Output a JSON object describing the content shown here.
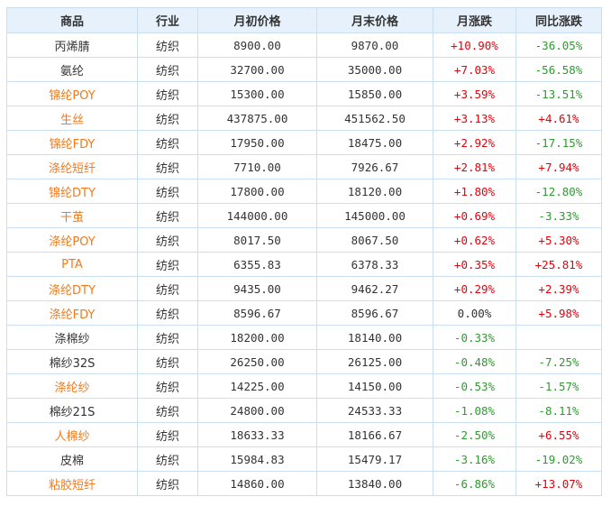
{
  "colors": {
    "header_bg": "#e6f1fb",
    "border": "#c9dff1",
    "link": "#f07a1e",
    "up": "#e8000b",
    "down": "#2e9c2e"
  },
  "headers": [
    "商品",
    "行业",
    "月初价格",
    "月末价格",
    "月涨跌",
    "同比涨跌"
  ],
  "rows": [
    {
      "name": "丙烯腈",
      "linked": false,
      "industry": "纺织",
      "start": "8900.00",
      "end": "9870.00",
      "month": "+10.90%",
      "month_dir": "up",
      "yoy": "-36.05%",
      "yoy_dir": "down"
    },
    {
      "name": "氨纶",
      "linked": false,
      "industry": "纺织",
      "start": "32700.00",
      "end": "35000.00",
      "month": "+7.03%",
      "month_dir": "up",
      "yoy": "-56.58%",
      "yoy_dir": "down"
    },
    {
      "name": "锦纶POY",
      "linked": true,
      "industry": "纺织",
      "start": "15300.00",
      "end": "15850.00",
      "month": "+3.59%",
      "month_dir": "up",
      "yoy": "-13.51%",
      "yoy_dir": "down"
    },
    {
      "name": "生丝",
      "linked": true,
      "industry": "纺织",
      "start": "437875.00",
      "end": "451562.50",
      "month": "+3.13%",
      "month_dir": "up",
      "yoy": "+4.61%",
      "yoy_dir": "up"
    },
    {
      "name": "锦纶FDY",
      "linked": true,
      "industry": "纺织",
      "start": "17950.00",
      "end": "18475.00",
      "month": "+2.92%",
      "month_dir": "up",
      "yoy": "-17.15%",
      "yoy_dir": "down"
    },
    {
      "name": "涤纶短纤",
      "linked": true,
      "industry": "纺织",
      "start": "7710.00",
      "end": "7926.67",
      "month": "+2.81%",
      "month_dir": "up",
      "yoy": "+7.94%",
      "yoy_dir": "up"
    },
    {
      "name": "锦纶DTY",
      "linked": true,
      "industry": "纺织",
      "start": "17800.00",
      "end": "18120.00",
      "month": "+1.80%",
      "month_dir": "up",
      "yoy": "-12.80%",
      "yoy_dir": "down"
    },
    {
      "name": "干茧",
      "linked": true,
      "industry": "纺织",
      "start": "144000.00",
      "end": "145000.00",
      "month": "+0.69%",
      "month_dir": "up",
      "yoy": "-3.33%",
      "yoy_dir": "down"
    },
    {
      "name": "涤纶POY",
      "linked": true,
      "industry": "纺织",
      "start": "8017.50",
      "end": "8067.50",
      "month": "+0.62%",
      "month_dir": "up",
      "yoy": "+5.30%",
      "yoy_dir": "up"
    },
    {
      "name": "PTA",
      "linked": true,
      "industry": "纺织",
      "start": "6355.83",
      "end": "6378.33",
      "month": "+0.35%",
      "month_dir": "up",
      "yoy": "+25.81%",
      "yoy_dir": "up"
    },
    {
      "name": "涤纶DTY",
      "linked": true,
      "industry": "纺织",
      "start": "9435.00",
      "end": "9462.27",
      "month": "+0.29%",
      "month_dir": "up",
      "yoy": "+2.39%",
      "yoy_dir": "up"
    },
    {
      "name": "涤纶FDY",
      "linked": true,
      "industry": "纺织",
      "start": "8596.67",
      "end": "8596.67",
      "month": "0.00%",
      "month_dir": "flat",
      "yoy": "+5.98%",
      "yoy_dir": "up"
    },
    {
      "name": "涤棉纱",
      "linked": false,
      "industry": "纺织",
      "start": "18200.00",
      "end": "18140.00",
      "month": "-0.33%",
      "month_dir": "down",
      "yoy": "",
      "yoy_dir": "flat"
    },
    {
      "name": "棉纱32S",
      "linked": false,
      "industry": "纺织",
      "start": "26250.00",
      "end": "26125.00",
      "month": "-0.48%",
      "month_dir": "down",
      "yoy": "-7.25%",
      "yoy_dir": "down"
    },
    {
      "name": "涤纶纱",
      "linked": true,
      "industry": "纺织",
      "start": "14225.00",
      "end": "14150.00",
      "month": "-0.53%",
      "month_dir": "down",
      "yoy": "-1.57%",
      "yoy_dir": "down"
    },
    {
      "name": "棉纱21S",
      "linked": false,
      "industry": "纺织",
      "start": "24800.00",
      "end": "24533.33",
      "month": "-1.08%",
      "month_dir": "down",
      "yoy": "-8.11%",
      "yoy_dir": "down"
    },
    {
      "name": "人棉纱",
      "linked": true,
      "industry": "纺织",
      "start": "18633.33",
      "end": "18166.67",
      "month": "-2.50%",
      "month_dir": "down",
      "yoy": "+6.55%",
      "yoy_dir": "up"
    },
    {
      "name": "皮棉",
      "linked": false,
      "industry": "纺织",
      "start": "15984.83",
      "end": "15479.17",
      "month": "-3.16%",
      "month_dir": "down",
      "yoy": "-19.02%",
      "yoy_dir": "down"
    },
    {
      "name": "粘胶短纤",
      "linked": true,
      "industry": "纺织",
      "start": "14860.00",
      "end": "13840.00",
      "month": "-6.86%",
      "month_dir": "down",
      "yoy": "+13.07%",
      "yoy_dir": "up"
    }
  ]
}
